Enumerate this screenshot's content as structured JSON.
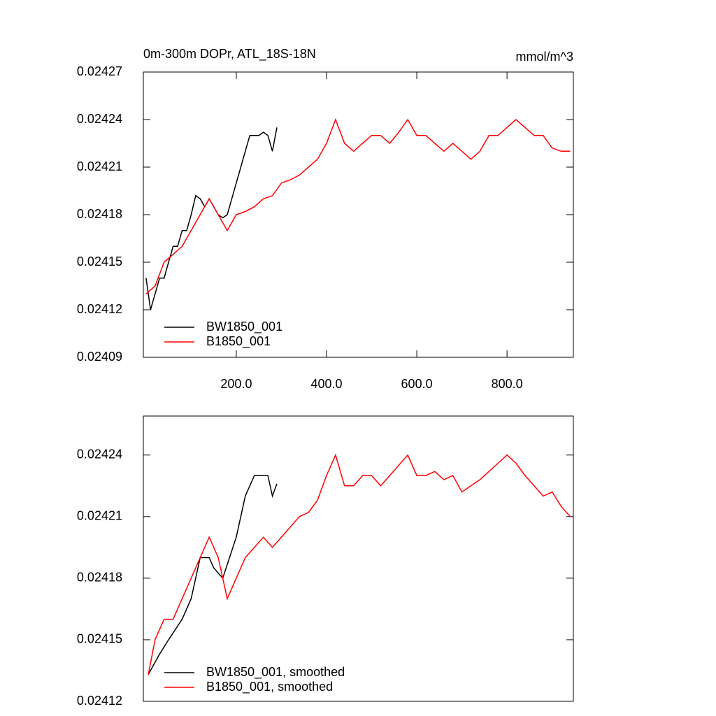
{
  "chart_data": [
    {
      "type": "line",
      "title": "0m-300m DOPr, ATL_18S-18N",
      "subtitle": "mmol/m^3",
      "xlim": [
        -6,
        947
      ],
      "ylim": [
        0.02409,
        0.02427
      ],
      "xticks": [
        {
          "value": 200,
          "label": "200.0"
        },
        {
          "value": 400,
          "label": "400.0"
        },
        {
          "value": 600,
          "label": "600.0"
        },
        {
          "value": 800,
          "label": "800.0"
        }
      ],
      "yticks": [
        0.02409,
        0.02412,
        0.02415,
        0.02418,
        0.02421,
        0.02424,
        0.02427
      ],
      "series": [
        {
          "name": "BW1850_001",
          "color": "#000000",
          "x": [
            0,
            10,
            20,
            30,
            40,
            50,
            60,
            70,
            80,
            90,
            100,
            110,
            120,
            130,
            140,
            150,
            160,
            170,
            180,
            190,
            200,
            210,
            220,
            230,
            240,
            250,
            260,
            270,
            280,
            290
          ],
          "values": [
            0.02414,
            0.02412,
            0.02413,
            0.02414,
            0.02414,
            0.02415,
            0.02416,
            0.02416,
            0.02417,
            0.02417,
            0.02418,
            0.024192,
            0.02419,
            0.024185,
            0.02419,
            0.024185,
            0.02418,
            0.024178,
            0.02418,
            0.02419,
            0.0242,
            0.02421,
            0.02422,
            0.02423,
            0.02423,
            0.02423,
            0.024232,
            0.02423,
            0.02422,
            0.024235
          ]
        },
        {
          "name": "B1850_001",
          "color": "#ff0000",
          "x": [
            0,
            20,
            40,
            60,
            80,
            100,
            120,
            140,
            160,
            180,
            200,
            220,
            240,
            260,
            280,
            300,
            320,
            340,
            360,
            380,
            400,
            420,
            440,
            460,
            480,
            500,
            520,
            540,
            560,
            580,
            600,
            620,
            640,
            660,
            680,
            700,
            720,
            740,
            760,
            780,
            800,
            820,
            840,
            860,
            880,
            900,
            920,
            940
          ],
          "values": [
            0.02413,
            0.024135,
            0.02415,
            0.024155,
            0.02416,
            0.02417,
            0.02418,
            0.02419,
            0.02418,
            0.02417,
            0.02418,
            0.024182,
            0.024185,
            0.02419,
            0.024192,
            0.0242,
            0.024202,
            0.024205,
            0.02421,
            0.024215,
            0.024225,
            0.02424,
            0.024225,
            0.02422,
            0.024225,
            0.02423,
            0.02423,
            0.024225,
            0.024232,
            0.02424,
            0.02423,
            0.02423,
            0.024225,
            0.02422,
            0.024225,
            0.02422,
            0.024215,
            0.02422,
            0.02423,
            0.02423,
            0.024235,
            0.02424,
            0.024235,
            0.02423,
            0.02423,
            0.024222,
            0.02422,
            0.02422
          ]
        }
      ]
    },
    {
      "type": "line",
      "xlim": [
        -6,
        947
      ],
      "ylim": [
        0.02412,
        0.024259
      ],
      "yticks": [
        0.02412,
        0.02415,
        0.02418,
        0.02421,
        0.02424
      ],
      "series": [
        {
          "name": "BW1850_001, smoothed",
          "color": "#000000",
          "x": [
            5,
            30,
            50,
            80,
            100,
            120,
            140,
            150,
            170,
            200,
            220,
            240,
            260,
            270,
            280,
            290
          ],
          "values": [
            0.024133,
            0.024143,
            0.02415,
            0.02416,
            0.02417,
            0.02419,
            0.02419,
            0.024185,
            0.02418,
            0.0242,
            0.02422,
            0.02423,
            0.02423,
            0.02423,
            0.02422,
            0.024226
          ]
        },
        {
          "name": "B1850_001, smoothed",
          "color": "#ff0000",
          "x": [
            5,
            20,
            40,
            60,
            80,
            100,
            120,
            140,
            160,
            180,
            200,
            220,
            240,
            260,
            280,
            300,
            320,
            340,
            360,
            380,
            400,
            420,
            440,
            460,
            480,
            500,
            520,
            540,
            560,
            580,
            600,
            620,
            640,
            660,
            680,
            700,
            720,
            740,
            760,
            780,
            800,
            820,
            840,
            860,
            880,
            900,
            920,
            940
          ],
          "values": [
            0.024133,
            0.02415,
            0.02416,
            0.02416,
            0.02417,
            0.02418,
            0.02419,
            0.0242,
            0.02419,
            0.02417,
            0.02418,
            0.02419,
            0.024195,
            0.0242,
            0.024195,
            0.0242,
            0.024205,
            0.02421,
            0.024212,
            0.024218,
            0.02423,
            0.02424,
            0.024225,
            0.024225,
            0.02423,
            0.02423,
            0.024225,
            0.02423,
            0.024235,
            0.02424,
            0.02423,
            0.02423,
            0.024232,
            0.024228,
            0.02423,
            0.024222,
            0.024225,
            0.024228,
            0.024232,
            0.024236,
            0.02424,
            0.024236,
            0.02423,
            0.024225,
            0.02422,
            0.024222,
            0.024215,
            0.02421
          ]
        }
      ]
    }
  ]
}
